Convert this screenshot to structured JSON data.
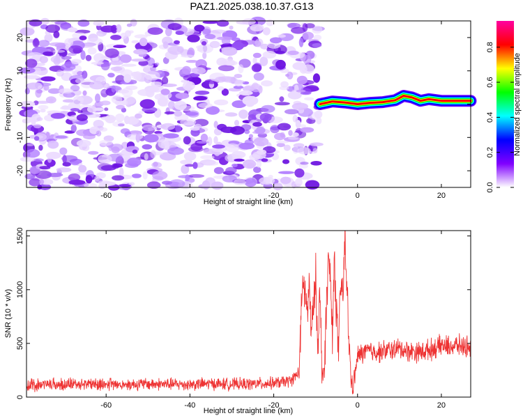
{
  "chart_data": [
    {
      "type": "heatmap",
      "title": "PAZ1.2025.038.10.37.G13",
      "xlabel": "Height of straight line (km)",
      "ylabel": "Frequency (Hz)",
      "xlim": [
        -79,
        27
      ],
      "ylim": [
        -25,
        25
      ],
      "xticks": [
        -60,
        -40,
        -20,
        0,
        20
      ],
      "yticks": [
        -20,
        -10,
        0,
        10,
        20
      ],
      "xtick_labels": [
        "-60",
        "-40",
        "-20",
        "0",
        "20"
      ],
      "ytick_labels": [
        "-20",
        "-10",
        "0",
        "10",
        "20"
      ],
      "noise_region_x": [
        -79,
        -9
      ],
      "signal_trace": {
        "x": [
          -9,
          -6,
          -3,
          0,
          3,
          6,
          9,
          11,
          13,
          15,
          17,
          20,
          24,
          27
        ],
        "y": [
          0.0,
          0.8,
          0.5,
          0.0,
          0.4,
          0.6,
          1.2,
          2.5,
          2.0,
          1.0,
          1.5,
          1.0,
          1.0,
          1.0
        ]
      },
      "colorbar": {
        "label": "Normalized spectral amplitude",
        "range": [
          0,
          0.95
        ],
        "ticks": [
          0.0,
          0.2,
          0.4,
          0.6,
          0.8
        ],
        "tick_labels": [
          "0.0",
          "0.2",
          "0.4",
          "0.6",
          "0.8"
        ],
        "colors": [
          "#ffffff",
          "#8000ff",
          "#0000ff",
          "#00ffff",
          "#00ff00",
          "#ffff00",
          "#ff0000",
          "#ff00a0"
        ]
      }
    },
    {
      "type": "line",
      "xlabel": "Height of straight line (km)",
      "ylabel": "SNR (10 * v/v)",
      "xlim": [
        -79,
        27
      ],
      "ylim": [
        0,
        1550
      ],
      "xticks": [
        -60,
        -40,
        -20,
        0,
        20
      ],
      "yticks": [
        0,
        500,
        1000,
        1500
      ],
      "xtick_labels": [
        "-60",
        "-40",
        "-20",
        "0",
        "20"
      ],
      "ytick_labels": [
        "0",
        "500",
        "1000",
        "1500"
      ],
      "color": "#ee3333",
      "series": [
        {
          "x": [
            -79,
            -75,
            -70,
            -65,
            -60,
            -55,
            -50,
            -45,
            -40,
            -35,
            -30,
            -25,
            -20,
            -16,
            -14,
            -13,
            -12.5,
            -12,
            -11.5,
            -11,
            -10.5,
            -10,
            -9.5,
            -9,
            -8.5,
            -8,
            -7.5,
            -7,
            -6.5,
            -6,
            -5.5,
            -5,
            -4.5,
            -4,
            -3.5,
            -3,
            -2.5,
            -2,
            -1.5,
            -1,
            0,
            2,
            5,
            8,
            10,
            12,
            15,
            18,
            20,
            22,
            24,
            27
          ],
          "y": [
            110,
            115,
            120,
            125,
            120,
            118,
            122,
            120,
            118,
            125,
            120,
            122,
            130,
            150,
            230,
            1100,
            950,
            800,
            1000,
            600,
            800,
            1150,
            500,
            950,
            300,
            150,
            800,
            1250,
            1150,
            600,
            1300,
            750,
            400,
            1100,
            900,
            1500,
            950,
            500,
            150,
            100,
            380,
            430,
            420,
            440,
            450,
            430,
            420,
            450,
            480,
            470,
            480,
            470
          ]
        }
      ]
    }
  ]
}
